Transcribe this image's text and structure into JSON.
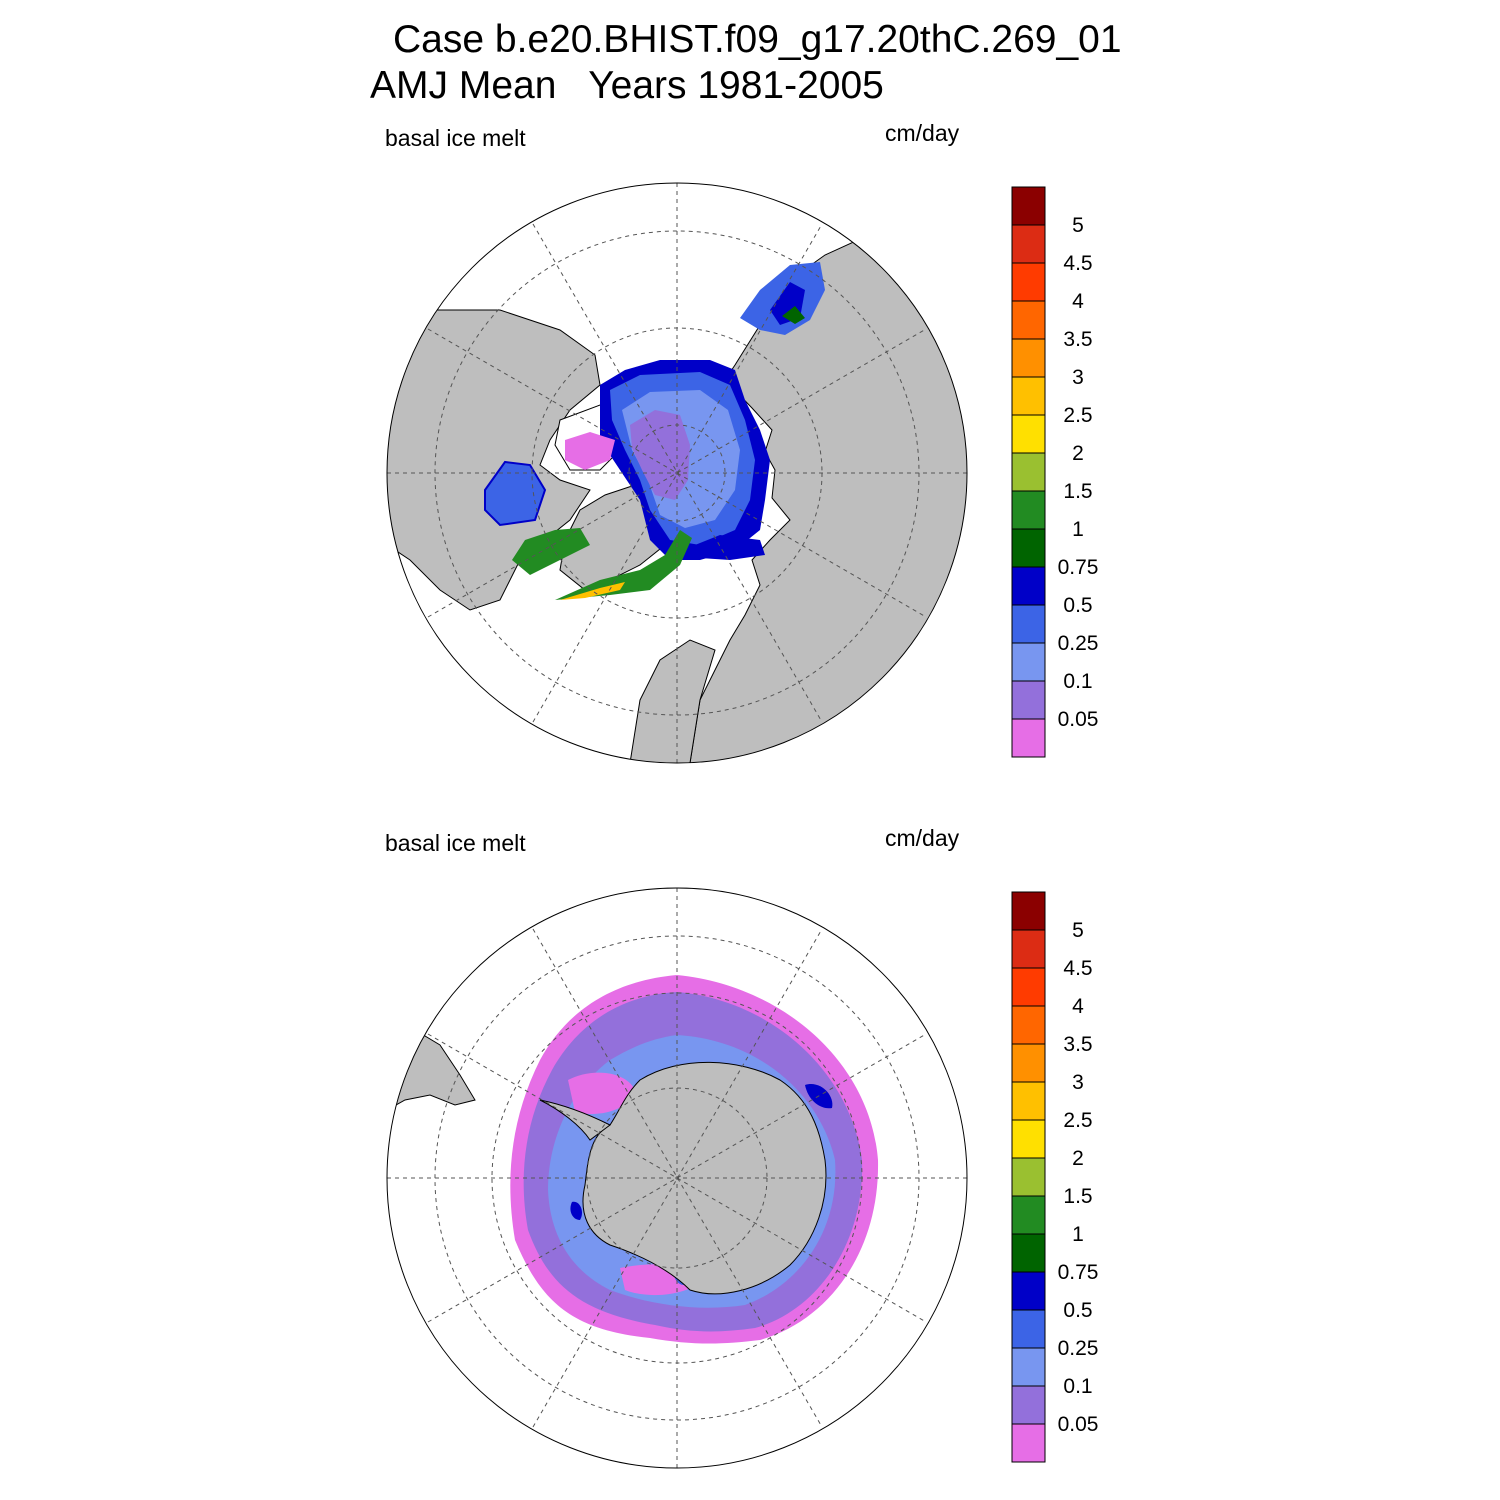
{
  "header": {
    "case_title": "Case b.e20.BHIST.f09_g17.20thC.269_01",
    "season_line": "AMJ Mean   Years 1981-2005"
  },
  "panels": [
    {
      "id": "north",
      "left_label": "basal ice melt",
      "units_label": "cm/day"
    },
    {
      "id": "south",
      "left_label": "basal ice melt",
      "units_label": "cm/day"
    }
  ],
  "colorbar": {
    "levels": [
      "5",
      "4.5",
      "4",
      "3.5",
      "3",
      "2.5",
      "2",
      "1.5",
      "1",
      "0.75",
      "0.5",
      "0.25",
      "0.1",
      "0.05"
    ],
    "colors_top_to_bottom": [
      "#8b0000",
      "#dc2c14",
      "#ff3b00",
      "#ff6600",
      "#ff9000",
      "#ffc000",
      "#ffe000",
      "#9ac030",
      "#228b22",
      "#006400",
      "#0000c8",
      "#3c64e6",
      "#7896f0",
      "#9370db",
      "#e66ee6"
    ]
  },
  "colors": {
    "land": "#bebebe",
    "ocean": "#ffffff",
    "graticule": "#555555"
  }
}
